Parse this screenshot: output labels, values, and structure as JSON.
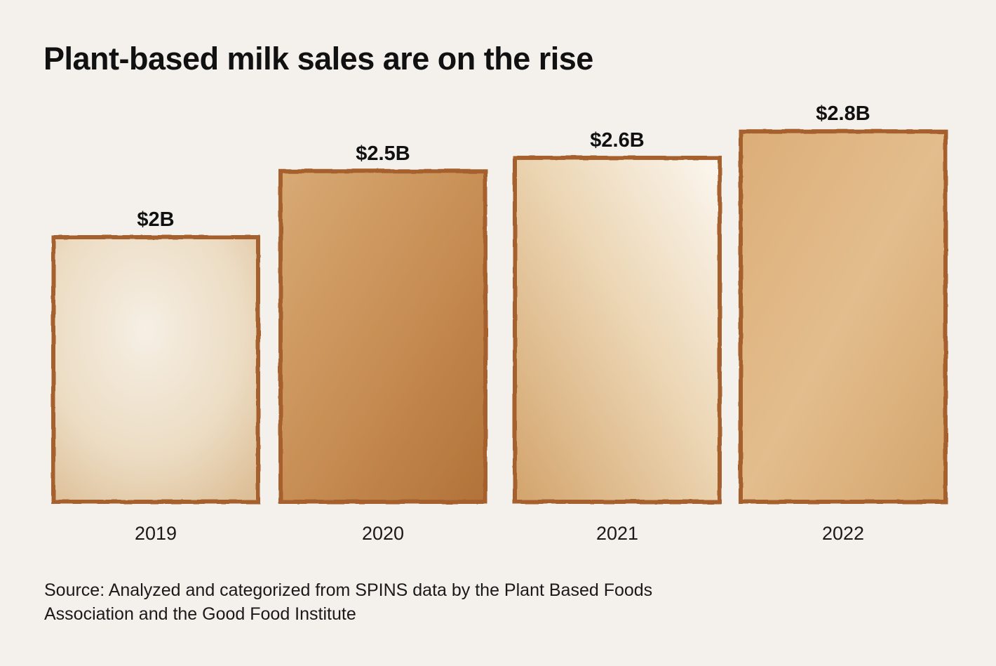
{
  "colors": {
    "background": "#f4f1ec",
    "bar_border": "#a5602e",
    "bar_light": "#f3e9da",
    "bar_mid": "#d9b07d",
    "bar_dark": "#b97a43",
    "text": "#111111"
  },
  "chart_data": {
    "type": "bar",
    "title": "Plant-based milk sales are on the rise",
    "categories": [
      "2019",
      "2020",
      "2021",
      "2022"
    ],
    "values": [
      2.0,
      2.5,
      2.6,
      2.8
    ],
    "data_labels": [
      "$2B",
      "$2.5B",
      "$2.6B",
      "$2.8B"
    ],
    "unit": "billion USD",
    "xlabel": "",
    "ylabel": "",
    "grid": false,
    "legend": "none"
  },
  "source": {
    "line1": "Source: Analyzed and categorized from SPINS data by the Plant Based Foods",
    "line2": "Association and the Good Food Institute"
  }
}
